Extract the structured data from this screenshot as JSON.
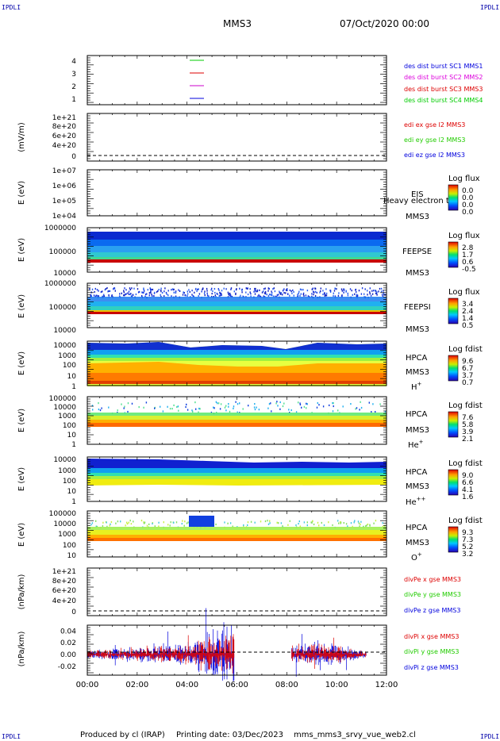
{
  "corners": {
    "tl": "IPDLI",
    "tr": "IPDLI",
    "bl": "IPDLI",
    "br": "IPDLI"
  },
  "header": {
    "title": "MMS3",
    "datetime": "07/Oct/2020 00:00"
  },
  "footer": {
    "produced_by": "Produced by cl (IRAP)",
    "printing_date": "Printing date: 03/Dec/2023",
    "script": "mms_mms3_srvy_vue_web2.cl"
  },
  "colors": {
    "sc1": "#00cc00",
    "sc2": "#dd0000",
    "sc3": "#cc00cc",
    "sc4": "#0000dd",
    "x": "#dd0000",
    "y": "#22cc00",
    "z": "#0000dd"
  },
  "chart_data": [
    {
      "type": "line",
      "name": "burst",
      "yticks": [
        "4",
        "3",
        "2",
        "1"
      ],
      "legend": [
        {
          "text": "des dist burst SC1 MMS1",
          "color": "#0000dd"
        },
        {
          "text": "des dist burst SC2 MMS2",
          "color": "#dd00dd"
        },
        {
          "text": "des dist burst SC3 MMS3",
          "color": "#dd0000"
        },
        {
          "text": "des dist burst SC4 MMS4",
          "color": "#00cc00"
        }
      ]
    },
    {
      "type": "line",
      "name": "edi",
      "ylabel": "(mV/m)",
      "yticks": [
        "1e+21",
        "8e+20",
        "6e+20",
        "4e+20",
        "2e+20",
        "0"
      ],
      "legend": [
        {
          "text": "edi ex gse l2 MMS3",
          "color": "#dd0000"
        },
        {
          "text": "edi ey gse l2 MMS3",
          "color": "#22cc00"
        },
        {
          "text": "edi ez gse l2 MMS3",
          "color": "#0000dd"
        }
      ]
    },
    {
      "type": "heatmap",
      "name": "eis",
      "ylabel": "E (eV)",
      "yticks": [
        "1e+07",
        "1e+06",
        "1e+05",
        "1e+04"
      ],
      "labels": [
        "EIS",
        "MMS3"
      ],
      "overlay": "Heavy electron tof",
      "cbar_title": "Log flux",
      "cbar_ticks": [
        "0.0",
        "0.0",
        "0.0",
        "0.0"
      ]
    },
    {
      "type": "heatmap",
      "name": "feepse",
      "ylabel": "E (eV)",
      "yticks": [
        "1000000",
        "100000",
        "10000"
      ],
      "labels": [
        "FEEPSE",
        "MMS3"
      ],
      "cbar_title": "Log flux",
      "cbar_ticks": [
        "2.8",
        "1.7",
        "0.6",
        "-0.5"
      ]
    },
    {
      "type": "heatmap",
      "name": "feepsi",
      "ylabel": "E (eV)",
      "yticks": [
        "1000000",
        "100000",
        "10000"
      ],
      "labels": [
        "FEEPSI",
        "MMS3"
      ],
      "cbar_title": "Log flux",
      "cbar_ticks": [
        "3.4",
        "2.4",
        "1.4",
        "0.5"
      ]
    },
    {
      "type": "heatmap",
      "name": "hpca-h",
      "ylabel": "E (eV)",
      "yticks": [
        "10000",
        "1000",
        "100",
        "10",
        "1"
      ],
      "labels": [
        "HPCA",
        "MMS3"
      ],
      "species": "H",
      "charge": "+",
      "cbar_title": "Log fdist",
      "cbar_ticks": [
        "9.6",
        "6.7",
        "3.7",
        "0.7"
      ]
    },
    {
      "type": "heatmap",
      "name": "hpca-he",
      "ylabel": "E (eV)",
      "yticks": [
        "100000",
        "10000",
        "1000",
        "100",
        "10",
        "1"
      ],
      "labels": [
        "HPCA",
        "MMS3"
      ],
      "species": "He",
      "charge": "+",
      "cbar_title": "Log fdist",
      "cbar_ticks": [
        "7.6",
        "5.8",
        "3.9",
        "2.1"
      ]
    },
    {
      "type": "heatmap",
      "name": "hpca-he2",
      "ylabel": "E (eV)",
      "yticks": [
        "10000",
        "1000",
        "100",
        "10",
        "1"
      ],
      "labels": [
        "HPCA",
        "MMS3"
      ],
      "species": "He",
      "charge": "++",
      "cbar_title": "Log fdist",
      "cbar_ticks": [
        "9.0",
        "6.6",
        "4.1",
        "1.6"
      ]
    },
    {
      "type": "heatmap",
      "name": "hpca-o",
      "ylabel": "E (eV)",
      "yticks": [
        "100000",
        "10000",
        "1000",
        "100",
        "10"
      ],
      "labels": [
        "HPCA",
        "MMS3"
      ],
      "species": "O",
      "charge": "+",
      "cbar_title": "Log fdist",
      "cbar_ticks": [
        "9.3",
        "7.3",
        "5.2",
        "3.2"
      ]
    },
    {
      "type": "line",
      "name": "divpe",
      "ylabel": "(nPa/km)",
      "yticks": [
        "1e+21",
        "8e+20",
        "6e+20",
        "4e+20",
        "2e+20",
        "0"
      ],
      "legend": [
        {
          "text": "divPe x gse MMS3",
          "color": "#dd0000"
        },
        {
          "text": "divPe y gse MMS3",
          "color": "#22cc00"
        },
        {
          "text": "divPe z gse MMS3",
          "color": "#0000dd"
        }
      ]
    },
    {
      "type": "line",
      "name": "divpi",
      "ylabel": "(nPa/km)",
      "yticks": [
        "0.04",
        "0.02",
        "0.00",
        "-0.02"
      ],
      "ylim": [
        -0.035,
        0.05
      ],
      "x_axis": [
        "00:00",
        "02:00",
        "04:00",
        "06:00",
        "08:00",
        "10:00",
        "12:00"
      ],
      "x_range_hours": [
        0,
        12
      ],
      "data_intervals_hours": [
        [
          0,
          5.9
        ],
        [
          8.2,
          11.2
        ]
      ],
      "legend": [
        {
          "text": "divPi x gse MMS3",
          "color": "#dd0000"
        },
        {
          "text": "divPi y gse MMS3",
          "color": "#22cc00"
        },
        {
          "text": "divPi z gse MMS3",
          "color": "#0000dd"
        }
      ]
    }
  ]
}
